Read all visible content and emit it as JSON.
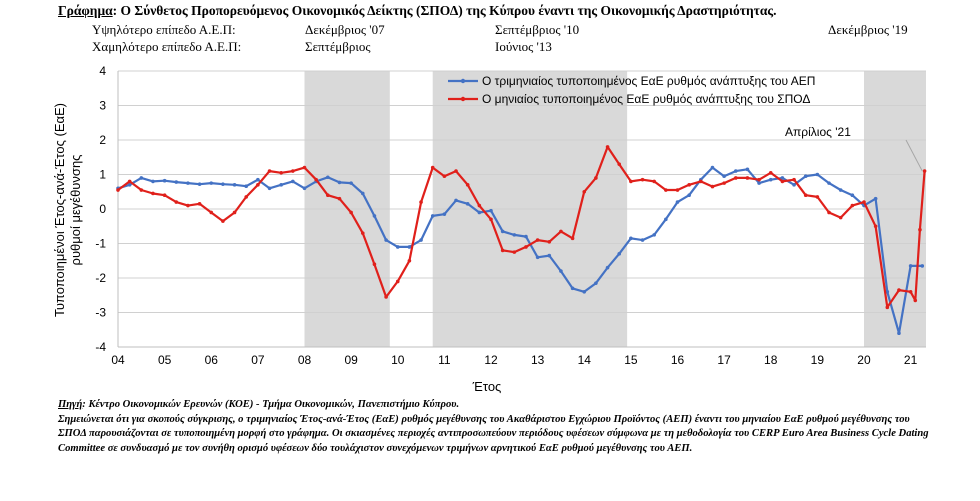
{
  "header": {
    "title_label": "Γράφημα",
    "title_text": ": Ο Σύνθετος Προπορευόμενος Οικονομικός Δείκτης (ΣΠΟΔ) της Κύπρου έναντι της Οικονομικής  Δραστηριότητας.",
    "peak_label": "Υψηλότερο επίπεδο Α.Ε.Π:",
    "trough_label": "Χαμηλότερο επίπεδο Α.Ε.Π:",
    "peak_1": "Δεκέμβριος '07",
    "trough_1": "Σεπτέμβριος",
    "peak_2": "Σεπτέμβριος '10",
    "trough_2": "Ιούνιος '13",
    "peak_3": "Δεκέμβριος '19"
  },
  "chart_data": {
    "type": "line",
    "xlabel": "Έτος",
    "ylabel": "Τυποποιημένοι Έτος-ανά-Έτος (ΕαΕ) ρυθμοί μεγέθυνσης",
    "ylim": [
      -4,
      4
    ],
    "yticks": [
      -4,
      -3,
      -2,
      -1,
      0,
      1,
      2,
      3,
      4
    ],
    "xlim": [
      2004.0,
      2021.33
    ],
    "xtick_labels": [
      "04",
      "05",
      "06",
      "07",
      "08",
      "09",
      "10",
      "11",
      "12",
      "13",
      "14",
      "15",
      "16",
      "17",
      "18",
      "19",
      "20",
      "21"
    ],
    "grid": "horizontal",
    "legend_position": "top-right",
    "shaded_periods": [
      [
        2008.0,
        2009.83
      ],
      [
        2010.75,
        2014.92
      ],
      [
        2020.0,
        2021.33
      ]
    ],
    "annotation": {
      "text": "Απρίλιος '21",
      "x": 2021.25,
      "y": 1.1
    },
    "series": [
      {
        "name": "Ο τριμηνιαίος τυποποιημένος ΕαΕ ρυθμός ανάπτυξης του ΑΕΠ",
        "color": "#4472C4",
        "points": [
          [
            2004.0,
            0.6
          ],
          [
            2004.25,
            0.7
          ],
          [
            2004.5,
            0.9
          ],
          [
            2004.75,
            0.8
          ],
          [
            2005.0,
            0.82
          ],
          [
            2005.25,
            0.78
          ],
          [
            2005.5,
            0.75
          ],
          [
            2005.75,
            0.72
          ],
          [
            2006.0,
            0.75
          ],
          [
            2006.25,
            0.72
          ],
          [
            2006.5,
            0.7
          ],
          [
            2006.75,
            0.66
          ],
          [
            2007.0,
            0.85
          ],
          [
            2007.25,
            0.6
          ],
          [
            2007.5,
            0.7
          ],
          [
            2007.75,
            0.8
          ],
          [
            2008.0,
            0.6
          ],
          [
            2008.25,
            0.8
          ],
          [
            2008.5,
            0.92
          ],
          [
            2008.75,
            0.77
          ],
          [
            2009.0,
            0.75
          ],
          [
            2009.25,
            0.45
          ],
          [
            2009.5,
            -0.2
          ],
          [
            2009.75,
            -0.9
          ],
          [
            2010.0,
            -1.1
          ],
          [
            2010.25,
            -1.1
          ],
          [
            2010.5,
            -0.9
          ],
          [
            2010.75,
            -0.2
          ],
          [
            2011.0,
            -0.15
          ],
          [
            2011.25,
            0.25
          ],
          [
            2011.5,
            0.15
          ],
          [
            2011.75,
            -0.1
          ],
          [
            2012.0,
            -0.05
          ],
          [
            2012.25,
            -0.65
          ],
          [
            2012.5,
            -0.75
          ],
          [
            2012.75,
            -0.8
          ],
          [
            2013.0,
            -1.4
          ],
          [
            2013.25,
            -1.35
          ],
          [
            2013.5,
            -1.8
          ],
          [
            2013.75,
            -2.3
          ],
          [
            2014.0,
            -2.4
          ],
          [
            2014.25,
            -2.15
          ],
          [
            2014.5,
            -1.7
          ],
          [
            2014.75,
            -1.3
          ],
          [
            2015.0,
            -0.85
          ],
          [
            2015.25,
            -0.9
          ],
          [
            2015.5,
            -0.75
          ],
          [
            2015.75,
            -0.3
          ],
          [
            2016.0,
            0.2
          ],
          [
            2016.25,
            0.4
          ],
          [
            2016.5,
            0.85
          ],
          [
            2016.75,
            1.2
          ],
          [
            2017.0,
            0.95
          ],
          [
            2017.25,
            1.1
          ],
          [
            2017.5,
            1.15
          ],
          [
            2017.75,
            0.75
          ],
          [
            2018.0,
            0.85
          ],
          [
            2018.25,
            0.9
          ],
          [
            2018.5,
            0.7
          ],
          [
            2018.75,
            0.95
          ],
          [
            2019.0,
            1.0
          ],
          [
            2019.25,
            0.75
          ],
          [
            2019.5,
            0.55
          ],
          [
            2019.75,
            0.4
          ],
          [
            2020.0,
            0.1
          ],
          [
            2020.25,
            0.3
          ],
          [
            2020.5,
            -2.4
          ],
          [
            2020.75,
            -3.6
          ],
          [
            2021.0,
            -1.65
          ],
          [
            2021.25,
            -1.65
          ]
        ]
      },
      {
        "name": "Ο μηνιαίος τυποποιημένος ΕαΕ ρυθμός ανάπτυξης του ΣΠΟΔ",
        "color": "#E0201B",
        "points": [
          [
            2004.0,
            0.55
          ],
          [
            2004.25,
            0.8
          ],
          [
            2004.5,
            0.55
          ],
          [
            2004.75,
            0.45
          ],
          [
            2005.0,
            0.4
          ],
          [
            2005.25,
            0.2
          ],
          [
            2005.5,
            0.1
          ],
          [
            2005.75,
            0.15
          ],
          [
            2006.0,
            -0.1
          ],
          [
            2006.25,
            -0.35
          ],
          [
            2006.5,
            -0.1
          ],
          [
            2006.75,
            0.35
          ],
          [
            2007.0,
            0.7
          ],
          [
            2007.25,
            1.1
          ],
          [
            2007.5,
            1.05
          ],
          [
            2007.75,
            1.1
          ],
          [
            2008.0,
            1.2
          ],
          [
            2008.25,
            0.85
          ],
          [
            2008.5,
            0.4
          ],
          [
            2008.75,
            0.3
          ],
          [
            2009.0,
            -0.1
          ],
          [
            2009.25,
            -0.7
          ],
          [
            2009.5,
            -1.6
          ],
          [
            2009.75,
            -2.55
          ],
          [
            2010.0,
            -2.1
          ],
          [
            2010.25,
            -1.5
          ],
          [
            2010.5,
            0.2
          ],
          [
            2010.75,
            1.2
          ],
          [
            2011.0,
            0.95
          ],
          [
            2011.25,
            1.1
          ],
          [
            2011.5,
            0.7
          ],
          [
            2011.75,
            0.1
          ],
          [
            2012.0,
            -0.3
          ],
          [
            2012.25,
            -1.2
          ],
          [
            2012.5,
            -1.25
          ],
          [
            2012.75,
            -1.1
          ],
          [
            2013.0,
            -0.9
          ],
          [
            2013.25,
            -0.95
          ],
          [
            2013.5,
            -0.65
          ],
          [
            2013.75,
            -0.85
          ],
          [
            2014.0,
            0.5
          ],
          [
            2014.25,
            0.9
          ],
          [
            2014.5,
            1.8
          ],
          [
            2014.75,
            1.3
          ],
          [
            2015.0,
            0.8
          ],
          [
            2015.25,
            0.85
          ],
          [
            2015.5,
            0.8
          ],
          [
            2015.75,
            0.55
          ],
          [
            2016.0,
            0.55
          ],
          [
            2016.25,
            0.7
          ],
          [
            2016.5,
            0.8
          ],
          [
            2016.75,
            0.65
          ],
          [
            2017.0,
            0.75
          ],
          [
            2017.25,
            0.9
          ],
          [
            2017.5,
            0.9
          ],
          [
            2017.75,
            0.85
          ],
          [
            2018.0,
            1.05
          ],
          [
            2018.25,
            0.8
          ],
          [
            2018.5,
            0.85
          ],
          [
            2018.75,
            0.4
          ],
          [
            2019.0,
            0.35
          ],
          [
            2019.25,
            -0.1
          ],
          [
            2019.5,
            -0.25
          ],
          [
            2019.75,
            0.1
          ],
          [
            2020.0,
            0.2
          ],
          [
            2020.25,
            -0.5
          ],
          [
            2020.5,
            -2.85
          ],
          [
            2020.75,
            -2.35
          ],
          [
            2021.0,
            -2.4
          ],
          [
            2021.1,
            -2.65
          ],
          [
            2021.2,
            -0.6
          ],
          [
            2021.3,
            1.1
          ]
        ]
      }
    ]
  },
  "notes": {
    "source_label": "Πηγή",
    "source_text": ": Κέντρο Οικονομικών Ερευνών (ΚΟΕ) - Τμήμα Οικονομικών, Πανεπιστήμιο Κύπρου.",
    "note_text": "Σημειώνεται ότι για σκοπούς σύγκρισης, ο τριμηνιαίος Έτος-ανά-Έτος (ΕαΕ) ρυθμός μεγέθυνσης του Ακαθάριστου Εγχώριου Προϊόντος (ΑΕΠ) έναντι του μηνιαίου ΕαΕ ρυθμού μεγέθυνσης του ΣΠΟΔ παρουσιάζονται σε τυποποιημένη μορφή στο γράφημα. Οι σκιασμένες περιοχές αντιπροσωπεύουν περιόδους υφέσεων σύμφωνα με τη μεθοδολογία του CERP Euro Area Business Cycle Dating Committee σε συνδυασμό με τον συνήθη ορισμό υφέσεων δύο τουλάχιστον συνεχόμενων τριμήνων αρνητικού ΕαΕ ρυθμού μεγέθυνσης του ΑΕΠ."
  }
}
